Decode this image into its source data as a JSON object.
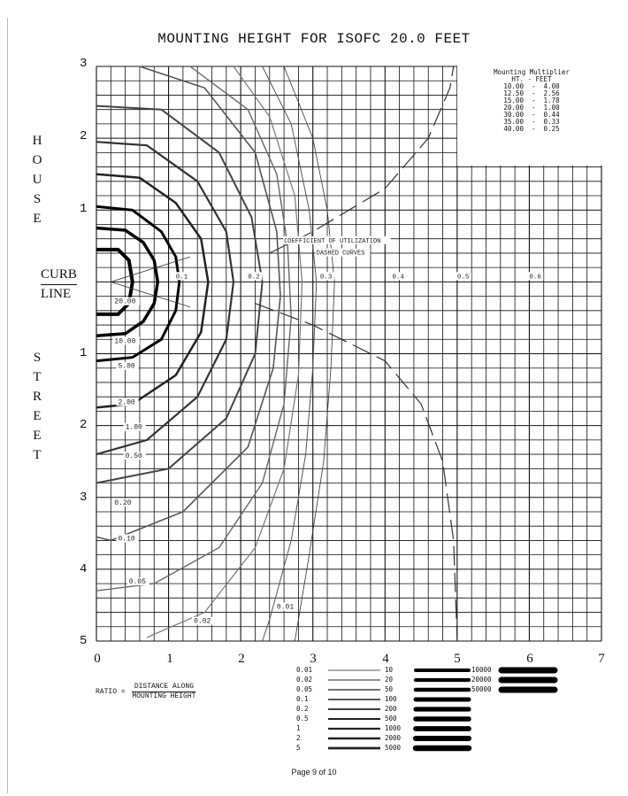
{
  "title": "MOUNTING HEIGHT FOR ISOFC 20.0 FEET",
  "side_labels": {
    "house": [
      "H",
      "O",
      "U",
      "S",
      "E"
    ],
    "street": [
      "S",
      "T",
      "R",
      "E",
      "E",
      "T"
    ],
    "curb_top": "CURB",
    "curb_bottom": "LINE"
  },
  "ratio": {
    "prefix": "RATIO =",
    "numerator": "DISTANCE ALONG",
    "denominator": "MOUNTING HEIGHT"
  },
  "mounting_multiplier": {
    "title": "Mounting Multiplier",
    "header": "HT. - FEET",
    "rows": [
      "10.00  -  4.00",
      "12.50  -  2.56",
      "15.00  -  1.78",
      "20.00  -  1.00",
      "30.00  -  0.44",
      "35.00  -  0.33",
      "40.00  -  0.25"
    ]
  },
  "legend": {
    "col1": [
      "0.01",
      "0.02",
      "0.05",
      "0.1",
      "0.2",
      "0.5",
      "1",
      "2",
      "5"
    ],
    "col2": [
      "10",
      "20",
      "50",
      "100",
      "200",
      "500",
      "1000",
      "2000",
      "5000"
    ],
    "col3": [
      "10000",
      "20000",
      "50000"
    ]
  },
  "footer": "Page 9 of 10",
  "chart_data": {
    "type": "isofootcandle-contour",
    "title": "MOUNTING HEIGHT FOR ISOFC 20.0 FEET",
    "x_ticks": [
      "0",
      "1",
      "2",
      "3",
      "4",
      "5",
      "6",
      "7"
    ],
    "y_ticks_house": [
      "3",
      "2",
      "1"
    ],
    "y_ticks_street": [
      "1",
      "2",
      "3",
      "4",
      "5"
    ],
    "xlim": [
      0,
      7
    ],
    "ylim": [
      -3,
      5
    ],
    "grid": true,
    "isofootcandle_labels": [
      "20.00",
      "10.00",
      "5.00",
      "2.00",
      "1.00",
      "0.50",
      "0.20",
      "0.10",
      "0.05",
      "0.02",
      "0.01"
    ],
    "isofootcandle_contours": [
      {
        "value": 20.0,
        "points": [
          [
            0,
            -0.45
          ],
          [
            0.3,
            -0.45
          ],
          [
            0.45,
            -0.3
          ],
          [
            0.5,
            0
          ],
          [
            0.45,
            0.3
          ],
          [
            0.3,
            0.45
          ],
          [
            0,
            0.45
          ]
        ]
      },
      {
        "value": 10.0,
        "points": [
          [
            0,
            -0.75
          ],
          [
            0.4,
            -0.72
          ],
          [
            0.65,
            -0.55
          ],
          [
            0.8,
            -0.3
          ],
          [
            0.85,
            0
          ],
          [
            0.8,
            0.3
          ],
          [
            0.65,
            0.55
          ],
          [
            0.4,
            0.72
          ],
          [
            0,
            0.75
          ]
        ]
      },
      {
        "value": 5.0,
        "points": [
          [
            0,
            -1.05
          ],
          [
            0.5,
            -1.0
          ],
          [
            0.9,
            -0.7
          ],
          [
            1.1,
            -0.35
          ],
          [
            1.15,
            0
          ],
          [
            1.1,
            0.4
          ],
          [
            0.9,
            0.8
          ],
          [
            0.5,
            1.05
          ],
          [
            0,
            1.1
          ]
        ]
      },
      {
        "value": 2.0,
        "points": [
          [
            0,
            -1.5
          ],
          [
            0.6,
            -1.45
          ],
          [
            1.1,
            -1.1
          ],
          [
            1.45,
            -0.6
          ],
          [
            1.55,
            0
          ],
          [
            1.45,
            0.7
          ],
          [
            1.1,
            1.3
          ],
          [
            0.5,
            1.7
          ],
          [
            0,
            1.75
          ]
        ]
      },
      {
        "value": 1.0,
        "points": [
          [
            0,
            -1.95
          ],
          [
            0.7,
            -1.9
          ],
          [
            1.4,
            -1.4
          ],
          [
            1.8,
            -0.7
          ],
          [
            1.9,
            0
          ],
          [
            1.8,
            0.8
          ],
          [
            1.4,
            1.6
          ],
          [
            0.7,
            2.2
          ],
          [
            0,
            2.4
          ]
        ]
      },
      {
        "value": 0.5,
        "points": [
          [
            0,
            -2.45
          ],
          [
            0.9,
            -2.4
          ],
          [
            1.7,
            -1.8
          ],
          [
            2.15,
            -0.9
          ],
          [
            2.3,
            0
          ],
          [
            2.2,
            1.0
          ],
          [
            1.8,
            1.9
          ],
          [
            1.0,
            2.6
          ],
          [
            0,
            2.8
          ]
        ]
      },
      {
        "value": 0.2,
        "points": [
          [
            0.6,
            -3
          ],
          [
            1.5,
            -2.7
          ],
          [
            2.2,
            -1.8
          ],
          [
            2.5,
            -0.7
          ],
          [
            2.55,
            0.2
          ],
          [
            2.45,
            1.2
          ],
          [
            2.1,
            2.3
          ],
          [
            1.2,
            3.2
          ],
          [
            0.2,
            3.6
          ],
          [
            0,
            3.55
          ]
        ]
      },
      {
        "value": 0.1,
        "points": [
          [
            1.3,
            -3
          ],
          [
            2.1,
            -2.4
          ],
          [
            2.5,
            -1.5
          ],
          [
            2.65,
            -0.5
          ],
          [
            2.7,
            0.5
          ],
          [
            2.6,
            1.7
          ],
          [
            2.3,
            2.8
          ],
          [
            1.7,
            3.7
          ],
          [
            0.8,
            4.2
          ],
          [
            0,
            4.3
          ]
        ]
      },
      {
        "value": 0.05,
        "points": [
          [
            1.9,
            -3
          ],
          [
            2.4,
            -2.3
          ],
          [
            2.75,
            -1.2
          ],
          [
            2.85,
            0
          ],
          [
            2.8,
            1.3
          ],
          [
            2.6,
            2.6
          ],
          [
            2.2,
            3.7
          ],
          [
            1.5,
            4.6
          ],
          [
            0.7,
            4.95
          ]
        ]
      },
      {
        "value": 0.02,
        "points": [
          [
            2.3,
            -3
          ],
          [
            2.7,
            -2.2
          ],
          [
            2.95,
            -1
          ],
          [
            3.05,
            0
          ],
          [
            3.0,
            1.2
          ],
          [
            2.9,
            2.4
          ],
          [
            2.7,
            3.6
          ],
          [
            2.4,
            4.7
          ],
          [
            2.3,
            5
          ]
        ]
      },
      {
        "value": 0.01,
        "points": [
          [
            2.6,
            -3
          ],
          [
            3.0,
            -2
          ],
          [
            3.2,
            -1
          ],
          [
            3.3,
            0
          ],
          [
            3.25,
            1.2
          ],
          [
            3.15,
            2.5
          ],
          [
            2.95,
            3.8
          ],
          [
            2.75,
            5
          ]
        ]
      }
    ],
    "cu_labels": [
      "0.1",
      "0.2",
      "0.3",
      "0.4",
      "0.5",
      "0.6"
    ],
    "cu_label_x": [
      1.1,
      2.1,
      3.1,
      4.1,
      5.0,
      6.0
    ],
    "cu_annotation": [
      "COEFFICIENT OF UTILIZATION",
      "DASHED CURVES"
    ]
  }
}
